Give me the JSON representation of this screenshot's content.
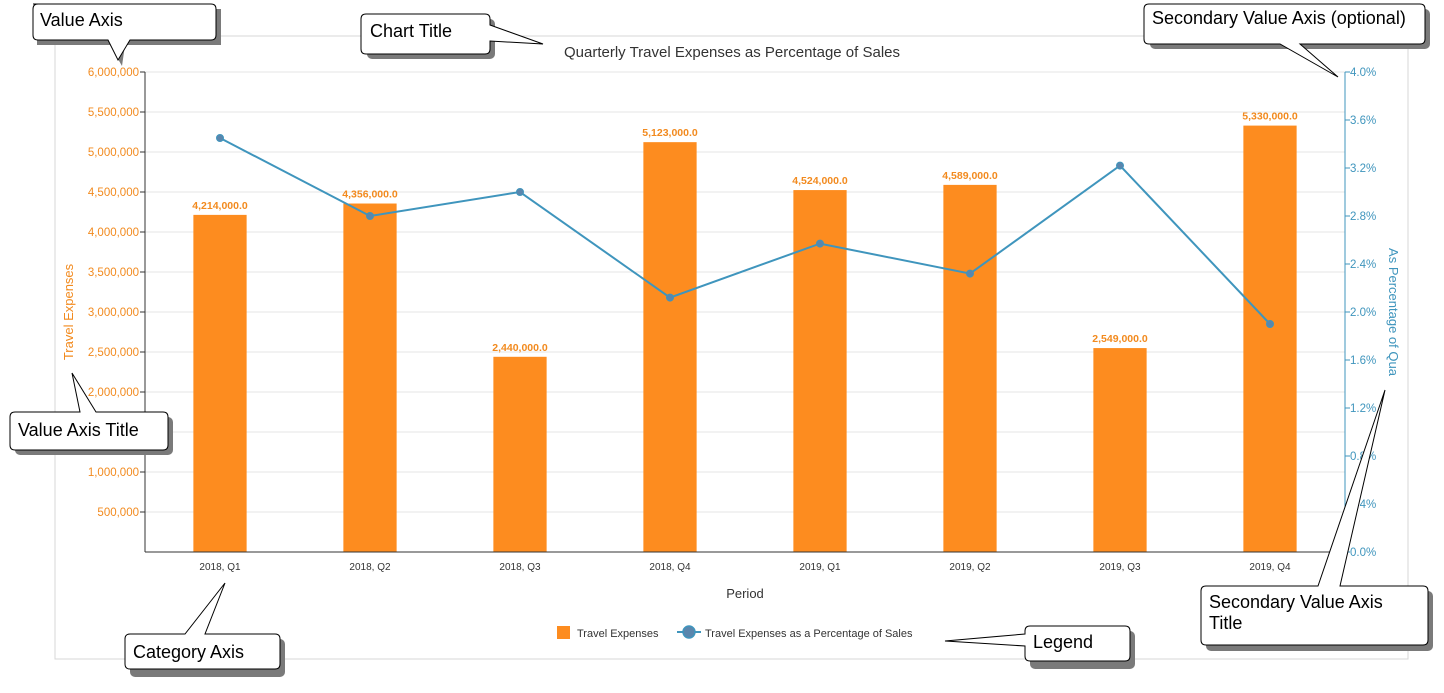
{
  "chart_data": {
    "type": "bar",
    "title": "Quarterly Travel Expenses as Percentage of Sales",
    "xlabel": "Period",
    "ylabel": "Travel Expenses",
    "y2label": "As Percentage of Qua",
    "ylim": [
      0,
      6000000
    ],
    "y2lim": [
      0,
      4.0
    ],
    "categories": [
      "2018, Q1",
      "2018, Q2",
      "2018, Q3",
      "2018, Q4",
      "2019, Q1",
      "2019, Q2",
      "2019, Q3",
      "2019, Q4"
    ],
    "y_ticks": [
      "500,000",
      "1,000,000",
      "1,500,000",
      "2,000,000",
      "2,500,000",
      "3,000,000",
      "3,500,000",
      "4,000,000",
      "4,500,000",
      "5,000,000",
      "5,500,000",
      "6,000,000"
    ],
    "y2_ticks": [
      "0.0%",
      "0.4%",
      "0.8%",
      "1.2%",
      "1.6%",
      "2.0%",
      "2.4%",
      "2.8%",
      "3.2%",
      "3.6%",
      "4.0%"
    ],
    "series": [
      {
        "name": "Travel Expenses",
        "kind": "bar",
        "axis": "primary",
        "color": "#fd8c1f",
        "values": [
          4214000,
          4356000,
          2440000,
          5123000,
          4524000,
          4589000,
          2549000,
          5330000
        ],
        "labels": [
          "4,214,000.0",
          "4,356,000.0",
          "2,440,000.0",
          "5,123,000.0",
          "4,524,000.0",
          "4,589,000.0",
          "2,549,000.0",
          "5,330,000.0"
        ]
      },
      {
        "name": "Travel Expenses as a Percentage of Sales",
        "kind": "line",
        "axis": "secondary",
        "color": "#3f95bd",
        "values": [
          3.45,
          2.8,
          3.0,
          2.12,
          2.57,
          2.32,
          3.22,
          1.9
        ]
      }
    ],
    "grid": true,
    "legend_position": "bottom"
  },
  "callouts": {
    "value_axis": "Value Axis",
    "chart_title": "Chart Title",
    "secondary_value_axis": "Secondary Value Axis (optional)",
    "value_axis_title": "Value Axis Title",
    "category_axis": "Category Axis",
    "legend": "Legend",
    "secondary_value_axis_title_line1": "Secondary Value Axis",
    "secondary_value_axis_title_line2": "Title"
  },
  "colors": {
    "bar": "#fd8c1f",
    "line": "#3f95bd",
    "left_axis_text": "#f28a1e",
    "right_axis_text": "#3f95bd"
  }
}
